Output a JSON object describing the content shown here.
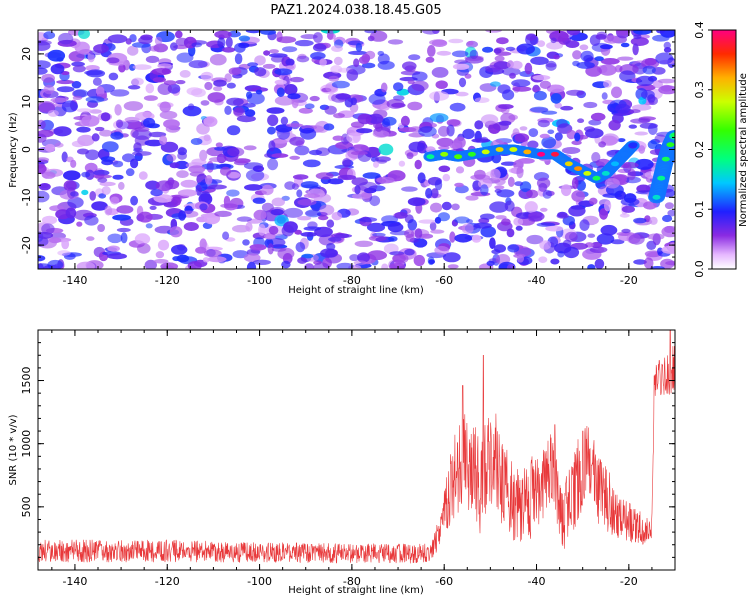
{
  "title": "PAZ1.2024.038.18.45.G05",
  "chart_data": [
    {
      "type": "heatmap",
      "xlabel": "Height of straight line (km)",
      "ylabel": "Frequency (Hz)",
      "xlim": [
        -148,
        -10
      ],
      "ylim": [
        -25,
        25
      ],
      "xticks": [
        -140,
        -120,
        -100,
        -80,
        -60,
        -40,
        -20
      ],
      "yticks": [
        -20,
        -10,
        0,
        10,
        20
      ],
      "xtick_labels": [
        "-140",
        "-120",
        "-100",
        "-80",
        "-60",
        "-40",
        "-20"
      ],
      "ytick_labels": [
        "-20",
        "-10",
        "0",
        "10",
        "20"
      ],
      "colorbar": {
        "label": "Normalized spectral amplitude",
        "range": [
          0.0,
          0.4
        ],
        "ticks": [
          0.0,
          0.1,
          0.2,
          0.3,
          0.4
        ],
        "tick_labels": [
          "0.0",
          "0.1",
          "0.2",
          "0.3",
          "0.4"
        ],
        "colormap": "gist_ncar_r"
      },
      "background_amplitude": 0.06,
      "signal_track": [
        {
          "x": -63,
          "y": -1.5,
          "a": 0.18
        },
        {
          "x": -60,
          "y": -1.0,
          "a": 0.26
        },
        {
          "x": -57,
          "y": -1.5,
          "a": 0.24
        },
        {
          "x": -54,
          "y": -1.0,
          "a": 0.22
        },
        {
          "x": -51,
          "y": -0.5,
          "a": 0.28
        },
        {
          "x": -48,
          "y": 0.0,
          "a": 0.3
        },
        {
          "x": -45,
          "y": 0.0,
          "a": 0.28
        },
        {
          "x": -42,
          "y": -0.5,
          "a": 0.32
        },
        {
          "x": -39,
          "y": -1.0,
          "a": 0.4
        },
        {
          "x": -36,
          "y": -1.0,
          "a": 0.38
        },
        {
          "x": -33,
          "y": -3.0,
          "a": 0.3
        },
        {
          "x": -31,
          "y": -4.0,
          "a": 0.33
        },
        {
          "x": -29,
          "y": -5.0,
          "a": 0.28
        },
        {
          "x": -27,
          "y": -6.0,
          "a": 0.2
        },
        {
          "x": -25,
          "y": -5.0,
          "a": 0.16
        },
        {
          "x": -23,
          "y": -3.0,
          "a": 0.14
        },
        {
          "x": -21,
          "y": -1.0,
          "a": 0.12
        },
        {
          "x": -19,
          "y": 1.0,
          "a": 0.1
        }
      ],
      "late_signal": [
        {
          "x": -14,
          "y": -10.0,
          "a": 0.16
        },
        {
          "x": -13,
          "y": -6.0,
          "a": 0.18
        },
        {
          "x": -12,
          "y": -2.0,
          "a": 0.2
        },
        {
          "x": -11,
          "y": 1.0,
          "a": 0.22
        },
        {
          "x": -10,
          "y": 3.0,
          "a": 0.2
        }
      ]
    },
    {
      "type": "line",
      "xlabel": "Height of straight line (km)",
      "ylabel": "SNR (10 * v/v)",
      "xlim": [
        -148,
        -10
      ],
      "ylim": [
        0,
        1900
      ],
      "xticks": [
        -140,
        -120,
        -100,
        -80,
        -60,
        -40,
        -20
      ],
      "yticks": [
        500,
        1000,
        1500
      ],
      "xtick_labels": [
        "-140",
        "-120",
        "-100",
        "-80",
        "-60",
        "-40",
        "-20"
      ],
      "ytick_labels": [
        "500",
        "1000",
        "1500"
      ],
      "series_color": "#e8383a",
      "envelope": [
        {
          "x": -148,
          "mean": 150,
          "amp": 90
        },
        {
          "x": -120,
          "mean": 150,
          "amp": 90
        },
        {
          "x": -100,
          "mean": 140,
          "amp": 80
        },
        {
          "x": -80,
          "mean": 130,
          "amp": 80
        },
        {
          "x": -63,
          "mean": 130,
          "amp": 80
        },
        {
          "x": -61,
          "mean": 320,
          "amp": 150
        },
        {
          "x": -58,
          "mean": 700,
          "amp": 350
        },
        {
          "x": -55,
          "mean": 900,
          "amp": 400
        },
        {
          "x": -52,
          "mean": 650,
          "amp": 400
        },
        {
          "x": -50,
          "mean": 950,
          "amp": 450
        },
        {
          "x": -47,
          "mean": 650,
          "amp": 350
        },
        {
          "x": -44,
          "mean": 500,
          "amp": 300
        },
        {
          "x": -40,
          "mean": 600,
          "amp": 350
        },
        {
          "x": -37,
          "mean": 800,
          "amp": 300
        },
        {
          "x": -34,
          "mean": 420,
          "amp": 300
        },
        {
          "x": -31,
          "mean": 700,
          "amp": 350
        },
        {
          "x": -29,
          "mean": 850,
          "amp": 300
        },
        {
          "x": -26,
          "mean": 600,
          "amp": 300
        },
        {
          "x": -22,
          "mean": 430,
          "amp": 200
        },
        {
          "x": -18,
          "mean": 330,
          "amp": 150
        },
        {
          "x": -15,
          "mean": 320,
          "amp": 120
        },
        {
          "x": -14.5,
          "mean": 1500,
          "amp": 150
        },
        {
          "x": -12,
          "mean": 1550,
          "amp": 180
        },
        {
          "x": -10,
          "mean": 1600,
          "amp": 200
        }
      ],
      "peaks": [
        {
          "x": -51.5,
          "y": 1700
        },
        {
          "x": -56,
          "y": 1460
        },
        {
          "x": -36,
          "y": 1150
        },
        {
          "x": -30,
          "y": 1100
        },
        {
          "x": -11,
          "y": 1900
        }
      ]
    }
  ]
}
